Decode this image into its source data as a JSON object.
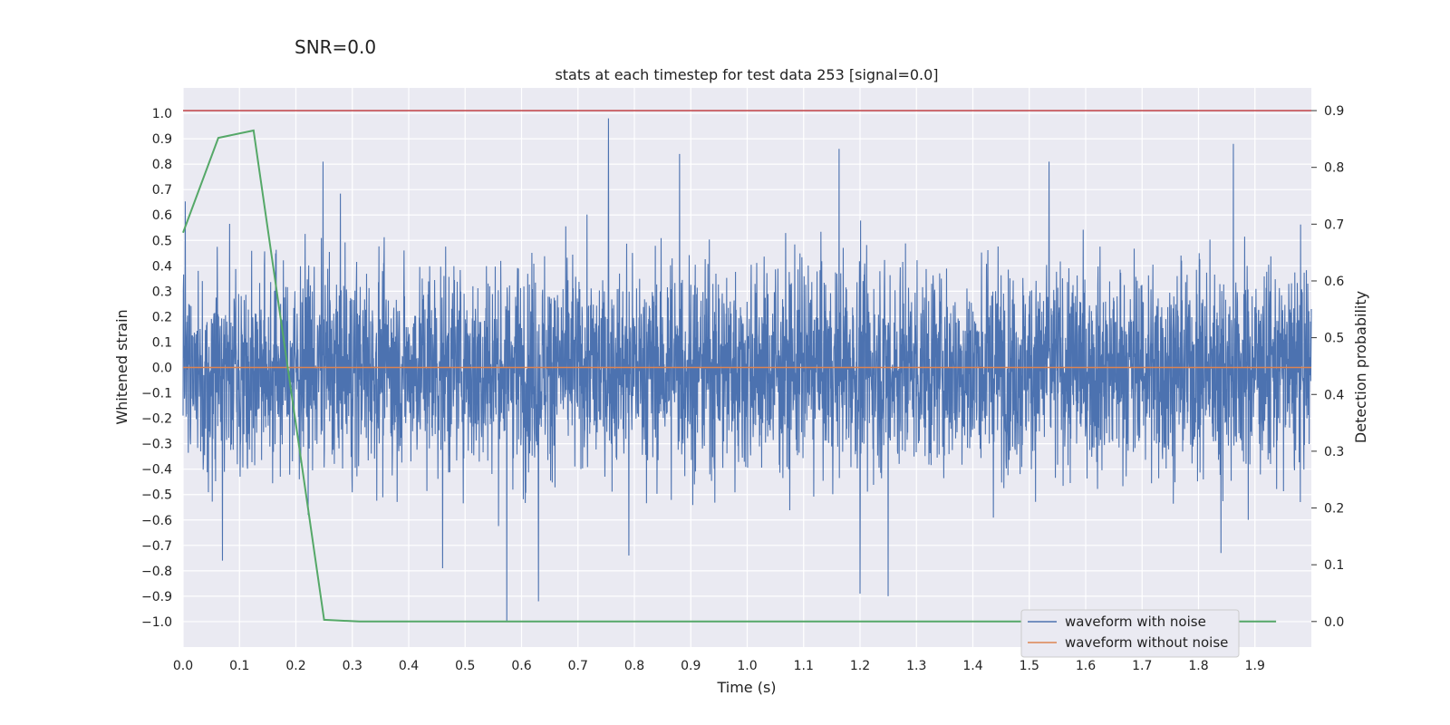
{
  "figure": {
    "suptitle": "SNR=0.0"
  },
  "chart_data": {
    "type": "line",
    "title": "stats at each timestep for test data 253 [signal=0.0]",
    "xlabel": "Time (s)",
    "ylabel": "Whitened strain",
    "y2label": "Detection probability",
    "xlim": [
      0.0,
      2.0
    ],
    "ylim": [
      -1.1,
      1.1
    ],
    "y2lim": [
      -0.045,
      0.94
    ],
    "xticks": [
      "0.0",
      "0.1",
      "0.2",
      "0.3",
      "0.4",
      "0.5",
      "0.6",
      "0.7",
      "0.8",
      "0.9",
      "1.0",
      "1.1",
      "1.2",
      "1.3",
      "1.4",
      "1.5",
      "1.6",
      "1.7",
      "1.8",
      "1.9"
    ],
    "yticks": [
      "1.0",
      "0.9",
      "0.8",
      "0.7",
      "0.6",
      "0.5",
      "0.4",
      "0.3",
      "0.2",
      "0.1",
      "0.0",
      "−0.1",
      "−0.2",
      "−0.3",
      "−0.4",
      "−0.5",
      "−0.6",
      "−0.7",
      "−0.8",
      "−0.9",
      "−1.0"
    ],
    "y2ticks": [
      "0.9",
      "0.8",
      "0.7",
      "0.6",
      "0.5",
      "0.4",
      "0.3",
      "0.2",
      "0.1",
      "0.0"
    ],
    "grid": true,
    "legend": {
      "position": "bottom-right",
      "entries": [
        "waveform with noise",
        "waveform without noise"
      ]
    },
    "colors": {
      "noise": "#4c72b0",
      "clean": "#dd8452",
      "prob": "#55a868",
      "threshold": "#c44e52",
      "background": "#eaeaf2",
      "grid": "#ffffff"
    },
    "series": [
      {
        "name": "waveform with noise",
        "axis": "left",
        "description": "whitened noise, 2048 Hz, mostly within ±0.5, extremes reach 0.98 and -1.0",
        "n_points": 4096,
        "spikes": [
          {
            "x": 0.07,
            "y": -0.76
          },
          {
            "x": 0.248,
            "y": 0.81
          },
          {
            "x": 0.46,
            "y": -0.79
          },
          {
            "x": 0.574,
            "y": -1.0
          },
          {
            "x": 0.63,
            "y": -0.92
          },
          {
            "x": 0.754,
            "y": 0.98
          },
          {
            "x": 0.79,
            "y": -0.74
          },
          {
            "x": 0.88,
            "y": 0.84
          },
          {
            "x": 1.163,
            "y": 0.86
          },
          {
            "x": 1.2,
            "y": -0.89
          },
          {
            "x": 1.25,
            "y": -0.9
          },
          {
            "x": 1.535,
            "y": 0.81
          },
          {
            "x": 1.862,
            "y": 0.88
          },
          {
            "x": 1.84,
            "y": -0.73
          }
        ]
      },
      {
        "name": "waveform without noise",
        "axis": "left",
        "x": [
          0.0,
          2.0
        ],
        "y": [
          0.0,
          0.0
        ]
      },
      {
        "name": "detection probability",
        "axis": "right",
        "x": [
          0.0,
          0.0625,
          0.125,
          0.25,
          0.3125,
          0.375,
          0.5,
          1.0,
          1.5,
          1.9375
        ],
        "y": [
          0.685,
          0.852,
          0.865,
          0.003,
          0.0,
          0.0,
          0.0,
          0.0,
          0.0,
          0.0
        ]
      },
      {
        "name": "threshold",
        "axis": "right",
        "x": [
          0.0,
          2.0
        ],
        "y": [
          0.9,
          0.9
        ]
      }
    ]
  }
}
